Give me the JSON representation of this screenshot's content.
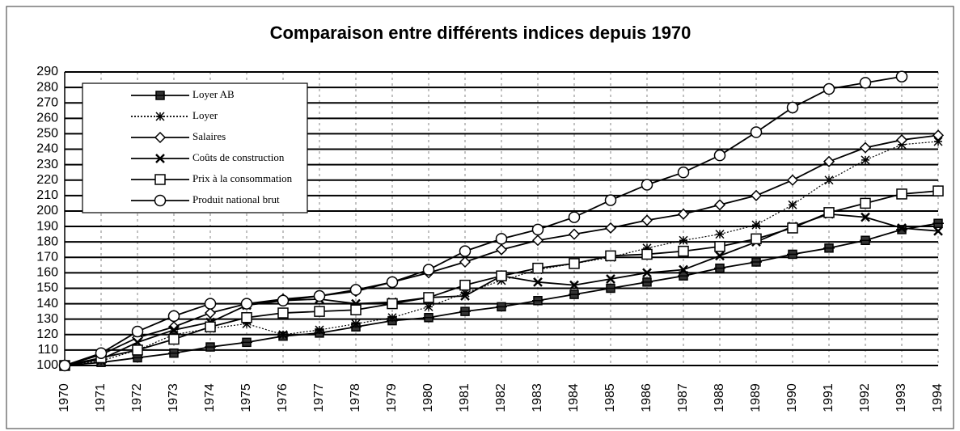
{
  "chart_data": {
    "type": "line",
    "title": "Comparaison entre différents indices depuis 1970",
    "categories": [
      "1970",
      "1971",
      "1972",
      "1973",
      "1974",
      "1975",
      "1976",
      "1977",
      "1978",
      "1979",
      "1980",
      "1981",
      "1982",
      "1983",
      "1984",
      "1985",
      "1986",
      "1987",
      "1988",
      "1989",
      "1990",
      "1991",
      "1992",
      "1993",
      "1994"
    ],
    "ylim": [
      100,
      290
    ],
    "yticks": [
      100,
      110,
      120,
      130,
      140,
      150,
      160,
      170,
      180,
      190,
      200,
      210,
      220,
      230,
      240,
      250,
      260,
      270,
      280,
      290
    ],
    "grid": true,
    "legend": "upper left",
    "series": [
      {
        "name": "Loyer AB",
        "color": "#000000",
        "marker": "filled-square",
        "values": [
          100,
          102,
          105,
          108,
          112,
          115,
          119,
          121,
          125,
          129,
          131,
          135,
          138,
          142,
          146,
          150,
          154,
          158,
          163,
          167,
          172,
          176,
          181,
          188,
          192
        ]
      },
      {
        "name": "Loyer",
        "color": "#000000",
        "marker": "asterisk",
        "dash": "dotted",
        "values": [
          100,
          103,
          110,
          120,
          124,
          127,
          120,
          123,
          127,
          131,
          138,
          147,
          155,
          162,
          166,
          170,
          176,
          181,
          185,
          191,
          204,
          220,
          233,
          243,
          245
        ]
      },
      {
        "name": "Salaires",
        "color": "#000000",
        "marker": "diamond",
        "values": [
          100,
          107,
          118,
          125,
          134,
          140,
          143,
          145,
          148,
          154,
          160,
          167,
          175,
          181,
          185,
          189,
          194,
          198,
          204,
          210,
          220,
          232,
          241,
          246,
          249
        ]
      },
      {
        "name": "Coûts de construction",
        "color": "#000000",
        "marker": "x",
        "values": [
          100,
          104,
          115,
          123,
          128,
          139,
          142,
          143,
          140,
          141,
          144,
          145,
          158,
          154,
          152,
          156,
          160,
          162,
          171,
          180,
          190,
          198,
          196,
          189,
          187
        ]
      },
      {
        "name": "Prix à la consommation",
        "color": "#000000",
        "marker": "square",
        "values": [
          100,
          105,
          110,
          117,
          125,
          131,
          134,
          135,
          136,
          140,
          144,
          152,
          158,
          163,
          166,
          171,
          172,
          174,
          177,
          182,
          189,
          199,
          205,
          211,
          213
        ]
      },
      {
        "name": "Produit national brut",
        "color": "#000000",
        "marker": "circle",
        "values": [
          100,
          108,
          122,
          132,
          140,
          140,
          142,
          145,
          149,
          154,
          162,
          174,
          182,
          188,
          196,
          207,
          217,
          225,
          236,
          251,
          267,
          279,
          283,
          287,
          null
        ]
      }
    ]
  }
}
